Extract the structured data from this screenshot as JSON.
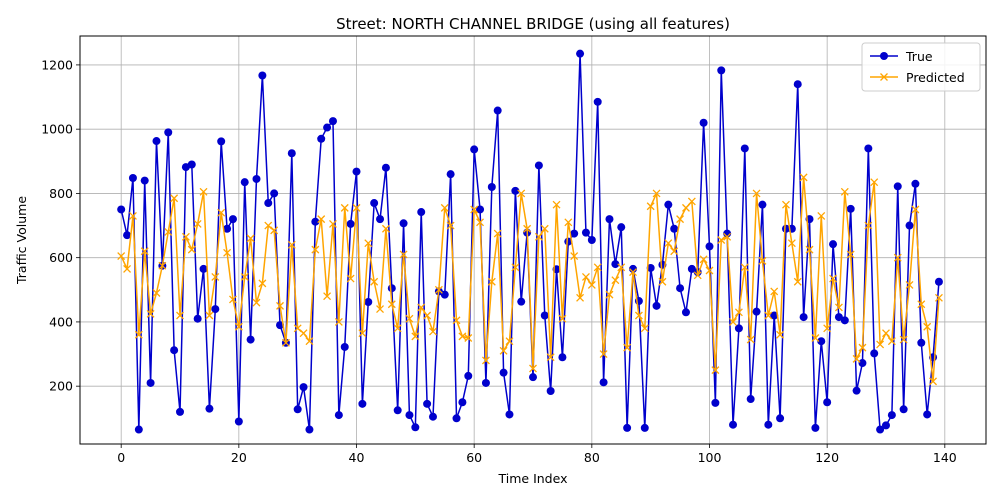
{
  "chart_data": {
    "type": "line",
    "title": "Street: NORTH CHANNEL BRIDGE (using all features)",
    "xlabel": "Time Index",
    "ylabel": "Traffic Volume",
    "xlim": [
      -7,
      147
    ],
    "ylim": [
      20,
      1290
    ],
    "xticks": [
      0,
      20,
      40,
      60,
      80,
      100,
      120,
      140
    ],
    "yticks": [
      200,
      400,
      600,
      800,
      1000,
      1200
    ],
    "grid": true,
    "legend_position": "top-right",
    "series": [
      {
        "name": "True",
        "color": "#0000cc",
        "marker": "circle",
        "values": [
          750,
          670,
          848,
          65,
          840,
          210,
          963,
          575,
          990,
          312,
          120,
          882,
          890,
          410,
          565,
          130,
          440,
          962,
          690,
          720,
          90,
          835,
          345,
          845,
          1167,
          770,
          800,
          390,
          335,
          925,
          128,
          197,
          65,
          712,
          970,
          1005,
          1025,
          110,
          322,
          705,
          868,
          145,
          462,
          770,
          720,
          880,
          505,
          125,
          707,
          110,
          72,
          742,
          145,
          105,
          495,
          485,
          860,
          100,
          150,
          232,
          937,
          750,
          210,
          820,
          1058,
          242,
          112,
          808,
          463,
          678,
          228,
          887,
          420,
          185,
          564,
          290,
          650,
          675,
          1235,
          678,
          655,
          1085,
          212,
          720,
          580,
          695,
          70,
          565,
          465,
          70,
          568,
          450,
          578,
          765,
          690,
          505,
          430,
          565,
          555,
          1020,
          635,
          148,
          1183,
          675,
          80,
          380,
          940,
          160,
          432,
          765,
          80,
          420,
          100,
          690,
          690,
          1140,
          415,
          720,
          70,
          340,
          150,
          642,
          415,
          405,
          752,
          186,
          272,
          940,
          302,
          65,
          78,
          110,
          822,
          128,
          700,
          830,
          335,
          112,
          290,
          525
        ]
      },
      {
        "name": "Predicted",
        "color": "#ffa500",
        "marker": "x",
        "values": [
          605,
          565,
          730,
          360,
          620,
          425,
          490,
          575,
          680,
          785,
          420,
          665,
          625,
          705,
          805,
          420,
          540,
          740,
          615,
          470,
          385,
          540,
          660,
          460,
          520,
          700,
          685,
          450,
          335,
          640,
          380,
          365,
          340,
          625,
          720,
          480,
          705,
          400,
          755,
          535,
          755,
          365,
          645,
          525,
          440,
          690,
          455,
          380,
          610,
          410,
          355,
          445,
          420,
          370,
          500,
          755,
          700,
          405,
          355,
          350,
          750,
          710,
          280,
          525,
          675,
          310,
          340,
          570,
          800,
          690,
          255,
          665,
          690,
          290,
          765,
          410,
          710,
          605,
          475,
          540,
          515,
          570,
          300,
          485,
          530,
          570,
          320,
          555,
          420,
          380,
          760,
          800,
          525,
          645,
          620,
          720,
          755,
          775,
          545,
          595,
          560,
          250,
          655,
          665,
          400,
          430,
          570,
          345,
          800,
          590,
          420,
          495,
          360,
          765,
          645,
          525,
          850,
          625,
          350,
          730,
          380,
          535,
          445,
          805,
          610,
          285,
          320,
          700,
          835,
          330,
          365,
          340,
          600,
          345,
          515,
          750,
          455,
          385,
          215,
          475
        ]
      }
    ]
  }
}
